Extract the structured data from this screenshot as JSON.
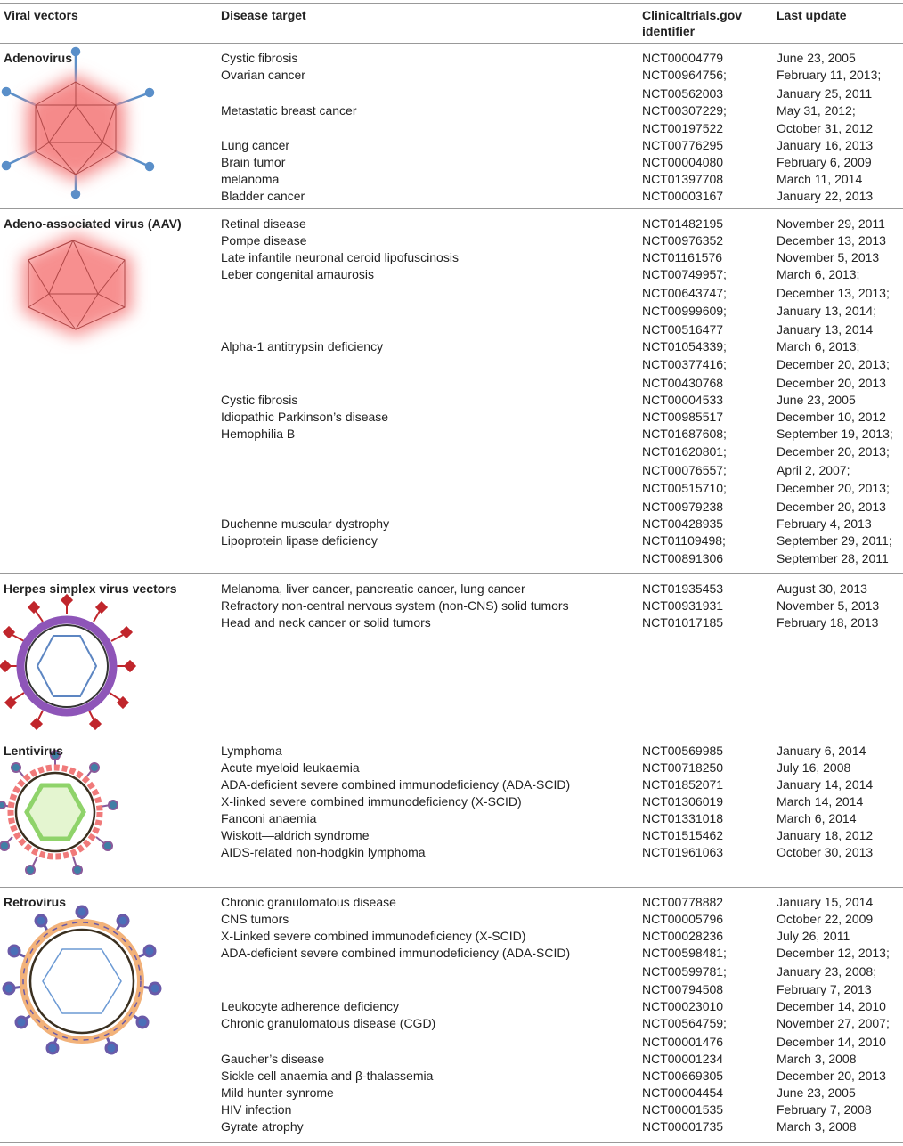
{
  "table": {
    "header": [
      "Viral vectors",
      "Disease target",
      "Clinicaltrials.gov identifier",
      "Last update"
    ],
    "sections": [
      {
        "vector": "Adenovirus",
        "rows": [
          {
            "disease": "Cystic fibrosis",
            "trials": [
              [
                "NCT00004779",
                "June 23, 2005"
              ]
            ]
          },
          {
            "disease": "Ovarian cancer",
            "trials": [
              [
                "NCT00964756;",
                "February 11, 2013;"
              ],
              [
                "NCT00562003",
                "January 25, 2011"
              ]
            ]
          },
          {
            "disease": "Metastatic breast cancer",
            "trials": [
              [
                "NCT00307229;",
                "May 31, 2012;"
              ],
              [
                "NCT00197522",
                "October 31, 2012"
              ]
            ]
          },
          {
            "disease": "Lung cancer",
            "trials": [
              [
                "NCT00776295",
                "January 16, 2013"
              ]
            ]
          },
          {
            "disease": "Brain tumor",
            "trials": [
              [
                "NCT00004080",
                "February 6, 2009"
              ]
            ]
          },
          {
            "disease": "melanoma",
            "trials": [
              [
                "NCT01397708",
                "March 11, 2014"
              ]
            ]
          },
          {
            "disease": "Bladder cancer",
            "trials": [
              [
                "NCT00003167",
                "January 22, 2013"
              ]
            ]
          }
        ]
      },
      {
        "vector": "Adeno-associated virus (AAV)",
        "rows": [
          {
            "disease": "Retinal disease",
            "trials": [
              [
                "NCT01482195",
                "November 29, 2011"
              ]
            ]
          },
          {
            "disease": "Pompe disease",
            "trials": [
              [
                "NCT00976352",
                "December 13, 2013"
              ]
            ]
          },
          {
            "disease": "Late infantile neuronal ceroid lipofuscinosis",
            "trials": [
              [
                "NCT01161576",
                "November 5, 2013"
              ]
            ]
          },
          {
            "disease": "Leber congenital amaurosis",
            "trials": [
              [
                "NCT00749957;",
                "March 6, 2013;"
              ],
              [
                "NCT00643747;",
                "December 13, 2013;"
              ],
              [
                "NCT00999609;",
                "January 13, 2014;"
              ],
              [
                "NCT00516477",
                "January 13, 2014"
              ]
            ]
          },
          {
            "disease": "Alpha-1 antitrypsin deficiency",
            "trials": [
              [
                "NCT01054339;",
                "March 6, 2013;"
              ],
              [
                "NCT00377416;",
                "December 20, 2013;"
              ],
              [
                "NCT00430768",
                "December 20, 2013"
              ]
            ]
          },
          {
            "disease": "Cystic fibrosis",
            "trials": [
              [
                "NCT00004533",
                "June 23, 2005"
              ]
            ]
          },
          {
            "disease": "Idiopathic Parkinson’s disease",
            "trials": [
              [
                "NCT00985517",
                "December 10, 2012"
              ]
            ]
          },
          {
            "disease": "Hemophilia B",
            "trials": [
              [
                "NCT01687608;",
                "September 19, 2013;"
              ],
              [
                "NCT01620801;",
                "December 20, 2013;"
              ],
              [
                "NCT00076557;",
                "April 2, 2007;"
              ],
              [
                "NCT00515710;",
                "December 20, 2013;"
              ],
              [
                "NCT00979238",
                "December 20, 2013"
              ]
            ]
          },
          {
            "disease": "Duchenne muscular dystrophy",
            "trials": [
              [
                "NCT00428935",
                "February 4, 2013"
              ]
            ]
          },
          {
            "disease": "Lipoprotein lipase deficiency",
            "trials": [
              [
                "NCT01109498;",
                "September 29, 2011;"
              ],
              [
                "NCT00891306",
                "September 28, 2011"
              ]
            ]
          }
        ]
      },
      {
        "vector": "Herpes simplex virus vectors",
        "rows": [
          {
            "disease": "Melanoma, liver cancer, pancreatic cancer, lung cancer",
            "trials": [
              [
                "NCT01935453",
                "August 30, 2013"
              ]
            ]
          },
          {
            "disease": "Refractory non-central nervous system (non-CNS) solid tumors",
            "trials": [
              [
                "NCT00931931",
                "November 5, 2013"
              ]
            ]
          },
          {
            "disease": "Head and neck cancer or solid tumors",
            "trials": [
              [
                "NCT01017185",
                "February 18, 2013"
              ]
            ]
          }
        ]
      },
      {
        "vector": "Lentivirus",
        "rows": [
          {
            "disease": "Lymphoma",
            "trials": [
              [
                "NCT00569985",
                "January 6, 2014"
              ]
            ]
          },
          {
            "disease": "Acute myeloid leukaemia",
            "trials": [
              [
                "NCT00718250",
                "July 16, 2008"
              ]
            ]
          },
          {
            "disease": "ADA-deficient severe combined immunodeficiency (ADA-SCID)",
            "trials": [
              [
                "NCT01852071",
                "January 14, 2014"
              ]
            ]
          },
          {
            "disease": "X-linked severe combined immunodeficiency (X-SCID)",
            "trials": [
              [
                "NCT01306019",
                "March 14, 2014"
              ]
            ]
          },
          {
            "disease": "Fanconi anaemia",
            "trials": [
              [
                "NCT01331018",
                "March 6, 2014"
              ]
            ]
          },
          {
            "disease": "Wiskott—aldrich syndrome",
            "trials": [
              [
                "NCT01515462",
                "January 18, 2012"
              ]
            ]
          },
          {
            "disease": "AIDS-related non-hodgkin lymphoma",
            "trials": [
              [
                "NCT01961063",
                "October 30, 2013"
              ]
            ]
          }
        ]
      },
      {
        "vector": "Retrovirus",
        "rows": [
          {
            "disease": "Chronic granulomatous disease",
            "trials": [
              [
                "NCT00778882",
                "January 15, 2014"
              ]
            ]
          },
          {
            "disease": "CNS tumors",
            "trials": [
              [
                "NCT00005796",
                "October 22, 2009"
              ]
            ]
          },
          {
            "disease": "X-Linked severe combined immunodeficiency (X-SCID)",
            "trials": [
              [
                "NCT00028236",
                "July 26, 2011"
              ]
            ]
          },
          {
            "disease": "ADA-deficient severe combined immunodeficiency (ADA-SCID)",
            "trials": [
              [
                "NCT00598481;",
                "December 12, 2013;"
              ],
              [
                "NCT00599781;",
                "January 23, 2008;"
              ],
              [
                "NCT00794508",
                "February 7, 2013"
              ]
            ]
          },
          {
            "disease": "Leukocyte adherence deficiency",
            "trials": [
              [
                "NCT00023010",
                "December 14, 2010"
              ]
            ]
          },
          {
            "disease": "Chronic granulomatous disease (CGD)",
            "trials": [
              [
                "NCT00564759;",
                "November 27, 2007;"
              ],
              [
                "NCT00001476",
                "December 14, 2010"
              ]
            ]
          },
          {
            "disease": "Gaucher’s disease",
            "trials": [
              [
                "NCT00001234",
                "March 3, 2008"
              ]
            ]
          },
          {
            "disease": "Sickle cell anaemia and β-thalassemia",
            "trials": [
              [
                "NCT00669305",
                "December 20, 2013"
              ]
            ]
          },
          {
            "disease": "Mild hunter synrome",
            "trials": [
              [
                "NCT00004454",
                "June 23, 2005"
              ]
            ]
          },
          {
            "disease": "HIV infection",
            "trials": [
              [
                "NCT00001535",
                "February 7, 2008"
              ]
            ]
          },
          {
            "disease": "Gyrate atrophy",
            "trials": [
              [
                "NCT00001735",
                "March 3, 2008"
              ]
            ]
          }
        ]
      }
    ]
  }
}
